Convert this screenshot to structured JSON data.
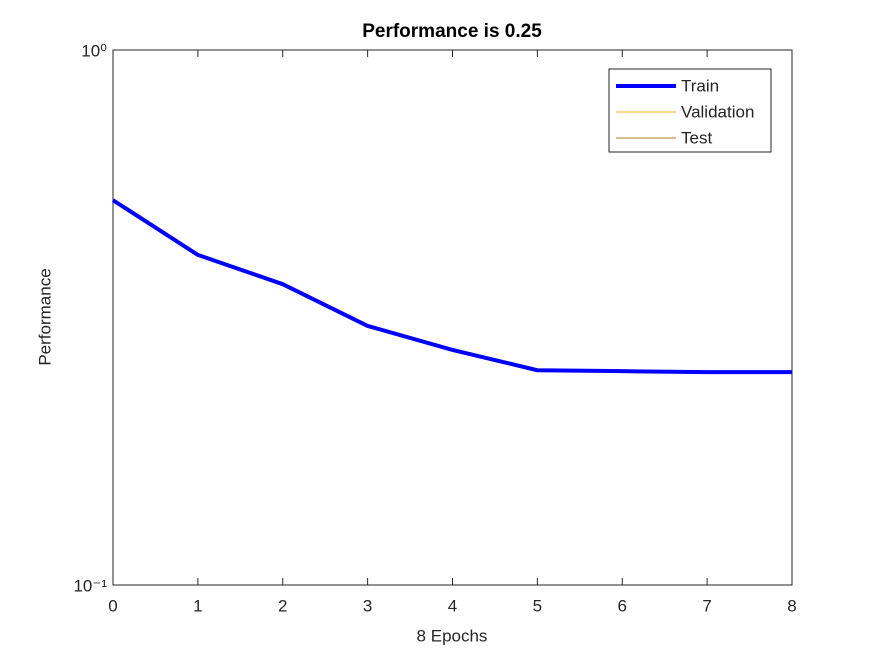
{
  "chart_data": {
    "type": "line",
    "title": "Performance is 0.25",
    "xlabel": "8 Epochs",
    "ylabel": "Performance",
    "x": [
      0,
      1,
      2,
      3,
      4,
      5,
      6,
      7,
      8
    ],
    "series": [
      {
        "name": "Train",
        "color": "#0000ff",
        "values": [
          0.524,
          0.414,
          0.365,
          0.305,
          0.275,
          0.252,
          0.251,
          0.25,
          0.25
        ]
      },
      {
        "name": "Validation",
        "color": "#edb120",
        "values": [
          null,
          null,
          null,
          null,
          null,
          null,
          null,
          null,
          null
        ]
      },
      {
        "name": "Test",
        "color": "#b07818",
        "values": [
          null,
          null,
          null,
          null,
          null,
          null,
          null,
          null,
          null
        ]
      }
    ],
    "xlim": [
      0,
      8
    ],
    "xticks": [
      0,
      1,
      2,
      3,
      4,
      5,
      6,
      7,
      8
    ],
    "ylim": [
      0.1,
      1
    ],
    "ylog": true,
    "yticks": [
      {
        "value": 0.1,
        "label": "10⁻¹"
      },
      {
        "value": 1,
        "label": "10⁰"
      }
    ],
    "legend": "northeast"
  }
}
